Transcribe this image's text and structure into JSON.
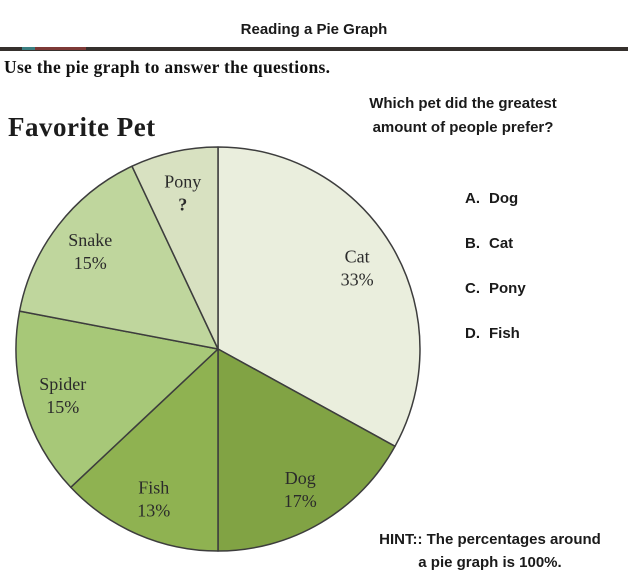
{
  "header": {
    "title": "Reading a Pie Graph"
  },
  "instruction": "Use the pie graph to answer the questions.",
  "question": {
    "line1": "Which pet did the greatest",
    "line2": "amount of people prefer?",
    "options": [
      {
        "letter": "A.",
        "label": "Dog"
      },
      {
        "letter": "B.",
        "label": "Cat"
      },
      {
        "letter": "C.",
        "label": "Pony"
      },
      {
        "letter": "D.",
        "label": "Fish"
      }
    ]
  },
  "hint": {
    "line1": "HINT:: The percentages around",
    "line2": "a pie graph is 100%."
  },
  "chart_data": {
    "type": "pie",
    "title": "Favorite Pet",
    "start_angle_deg": 0,
    "direction": "clockwise",
    "total": 100,
    "legend": "none",
    "outline_color": "#3d3d3d",
    "label_color": "#2b2b2b",
    "slices": [
      {
        "label": "Cat",
        "value": 33,
        "value_label": "33%",
        "color": "#eaeedd"
      },
      {
        "label": "Dog",
        "value": 17,
        "value_label": "17%",
        "color": "#81a344"
      },
      {
        "label": "Fish",
        "value": 13,
        "value_label": "13%",
        "color": "#8fb251"
      },
      {
        "label": "Spider",
        "value": 15,
        "value_label": "15%",
        "color": "#a7c878"
      },
      {
        "label": "Snake",
        "value": 15,
        "value_label": "15%",
        "color": "#bfd69d"
      },
      {
        "label": "Pony",
        "value": 7,
        "value_label": "?",
        "color": "#d8e1c1"
      }
    ]
  },
  "decorations": {
    "rule_color": "#35302d",
    "teal_mark_color": "#3a7e80",
    "red_mark_color": "#7d3936"
  }
}
